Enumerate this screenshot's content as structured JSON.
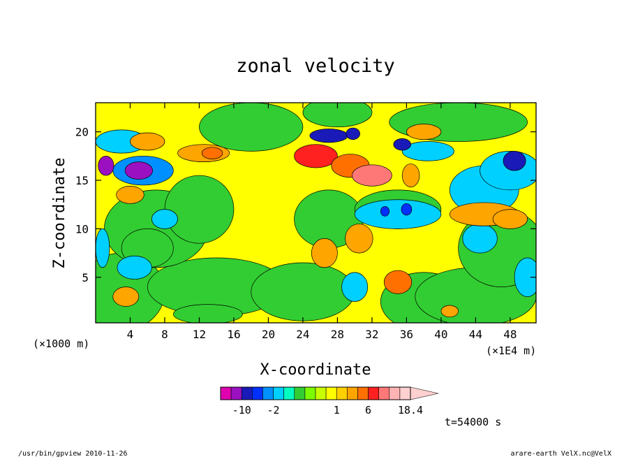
{
  "chart_data": {
    "type": "heatmap",
    "title": "zonal velocity",
    "xlabel": "X-coordinate",
    "ylabel": "Z-coordinate",
    "x_unit_left": "(×1000 m)",
    "x_unit_right": "(×1E4 m)",
    "xlim": [
      0,
      51
    ],
    "ylim": [
      0.3,
      23
    ],
    "x_ticks": [
      4,
      8,
      12,
      16,
      20,
      24,
      28,
      32,
      36,
      40,
      44,
      48
    ],
    "y_ticks": [
      5,
      10,
      15,
      20
    ],
    "colorbar": {
      "levels": [
        -18,
        -14,
        -10,
        -6,
        -3,
        -2,
        -1.5,
        -1,
        -0.5,
        0,
        0.5,
        1,
        2,
        4,
        6,
        8,
        11,
        14,
        18.4
      ],
      "colors": [
        "#e000b0",
        "#9b10c0",
        "#1a1ab8",
        "#0030ff",
        "#0090ff",
        "#00d0ff",
        "#00ffc0",
        "#32cd32",
        "#7cfc00",
        "#c8ff00",
        "#ffff00",
        "#ffd000",
        "#ffa500",
        "#ff7000",
        "#ff2020",
        "#ff7878",
        "#ffb4b4",
        "#ffd0d0"
      ],
      "tick_labels": [
        {
          "value": -10,
          "label": "-10"
        },
        {
          "value": -2,
          "label": "-2"
        },
        {
          "value": 1,
          "label": "1"
        },
        {
          "value": 6,
          "label": "6"
        },
        {
          "value": 18.4,
          "label": "18.4"
        }
      ]
    },
    "features": [
      {
        "name": "strong easterly core",
        "x": 5,
        "z": 16,
        "value": -11
      },
      {
        "name": "strong easterly core",
        "x": 1.5,
        "z": 16.5,
        "value": -11
      },
      {
        "name": "strong easterly core",
        "x": 27,
        "z": 19.5,
        "value": -10
      },
      {
        "name": "strong easterly core",
        "x": 29.5,
        "z": 19.8,
        "value": -9
      },
      {
        "name": "strong easterly core",
        "x": 35.5,
        "z": 18.7,
        "value": -8
      },
      {
        "name": "strong easterly core",
        "x": 48.5,
        "z": 17,
        "value": -9
      },
      {
        "name": "westerly maximum",
        "x": 32,
        "z": 15.5,
        "value": 9
      },
      {
        "name": "westerly core",
        "x": 25.5,
        "z": 17.5,
        "value": 7
      },
      {
        "name": "westerly core",
        "x": 30,
        "z": 16.3,
        "value": 6
      },
      {
        "name": "westerly core",
        "x": 35,
        "z": 4.5,
        "value": 5
      },
      {
        "name": "westerly core",
        "x": 12.5,
        "z": 17.8,
        "value": 4
      }
    ]
  },
  "time_label": "t=54000 s",
  "footer_left": "/usr/bin/gpview  2010-11-26",
  "footer_right": "arare-earth_VelX.nc@VelX"
}
